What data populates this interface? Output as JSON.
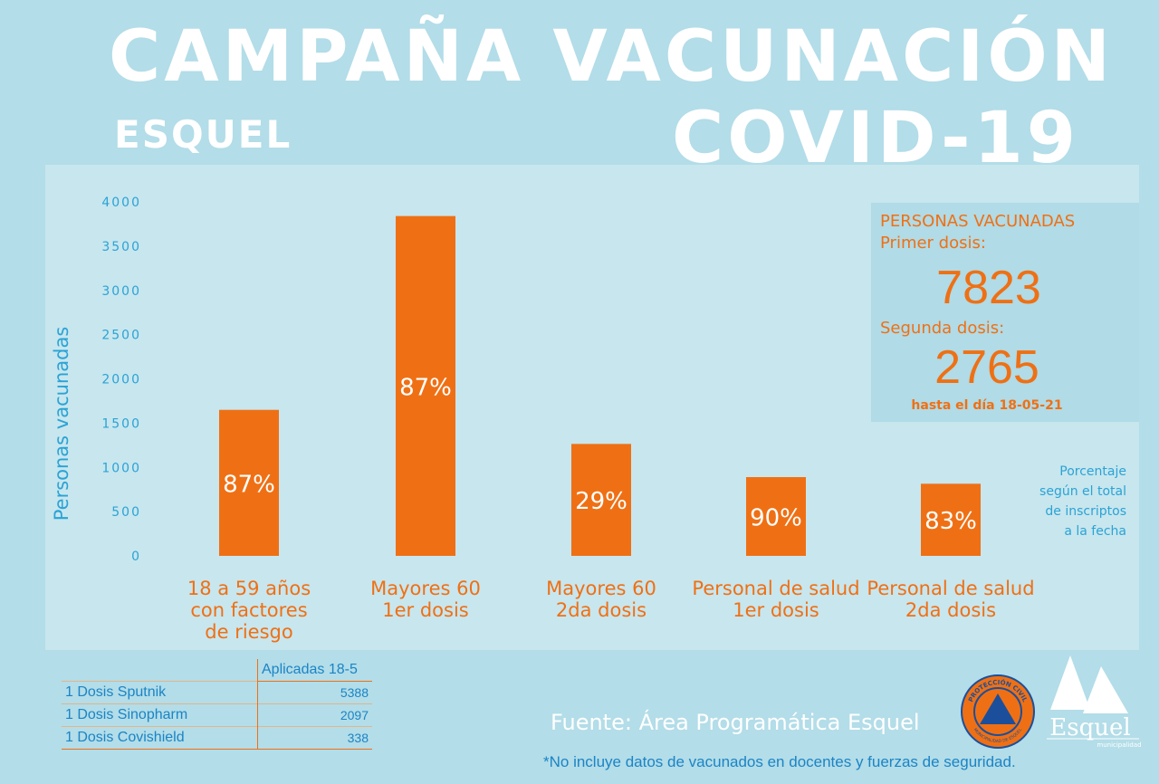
{
  "header": {
    "title_line1": "CAMPAÑA VACUNACIÓN",
    "title_line2": "COVID-19",
    "subtitle": "ESQUEL"
  },
  "colors": {
    "background": "#b3dde8",
    "panel": "#c8e6ee",
    "bar": "#ef7014",
    "axis_text": "#2aa3d5",
    "title": "#ffffff"
  },
  "chart_data": {
    "type": "bar",
    "ylabel": "Personas vacunadas",
    "ylim": [
      0,
      4000
    ],
    "yticks": [
      0,
      500,
      1000,
      1500,
      2000,
      2500,
      3000,
      3500,
      4000
    ],
    "grid": false,
    "categories": [
      [
        "18 a 59  años",
        "con factores",
        "de riesgo"
      ],
      [
        "Mayores 60",
        "1er dosis"
      ],
      [
        "Mayores 60",
        "2da dosis"
      ],
      [
        "Personal de salud",
        "1er dosis"
      ],
      [
        "Personal de salud",
        "2da dosis"
      ]
    ],
    "values": [
      1650,
      3840,
      1265,
      890,
      815
    ],
    "data_labels": [
      "87%",
      "87%",
      "29%",
      "90%",
      "83%"
    ]
  },
  "summary": {
    "heading": "PERSONAS VACUNADAS",
    "first_label": "Primer dosis:",
    "first_value": "7823",
    "second_label": "Segunda dosis:",
    "second_value": "2765",
    "date_note": "hasta el día 18-05-21"
  },
  "percentage_note": [
    "Porcentaje",
    "según el total",
    "de inscriptos",
    "a la fecha"
  ],
  "dose_table": {
    "header": "Aplicadas 18-5",
    "rows": [
      {
        "name": "1 Dosis Sputnik",
        "value": "5388"
      },
      {
        "name": "1 Dosis Sinopharm",
        "value": "2097"
      },
      {
        "name": "1 Dosis Covishield",
        "value": "338"
      }
    ]
  },
  "source": "Fuente: Área Programática Esquel",
  "footnote": "*No incluye datos de vacunados en docentes y fuerzas de seguridad.",
  "logos": {
    "emblem_text": "PROTECCIÓN CIVIL",
    "emblem_subtext": "MUNICIPALIDAD DE ESQUEL",
    "municipal_name": "Esquel",
    "municipal_sub": "municipalidad"
  }
}
